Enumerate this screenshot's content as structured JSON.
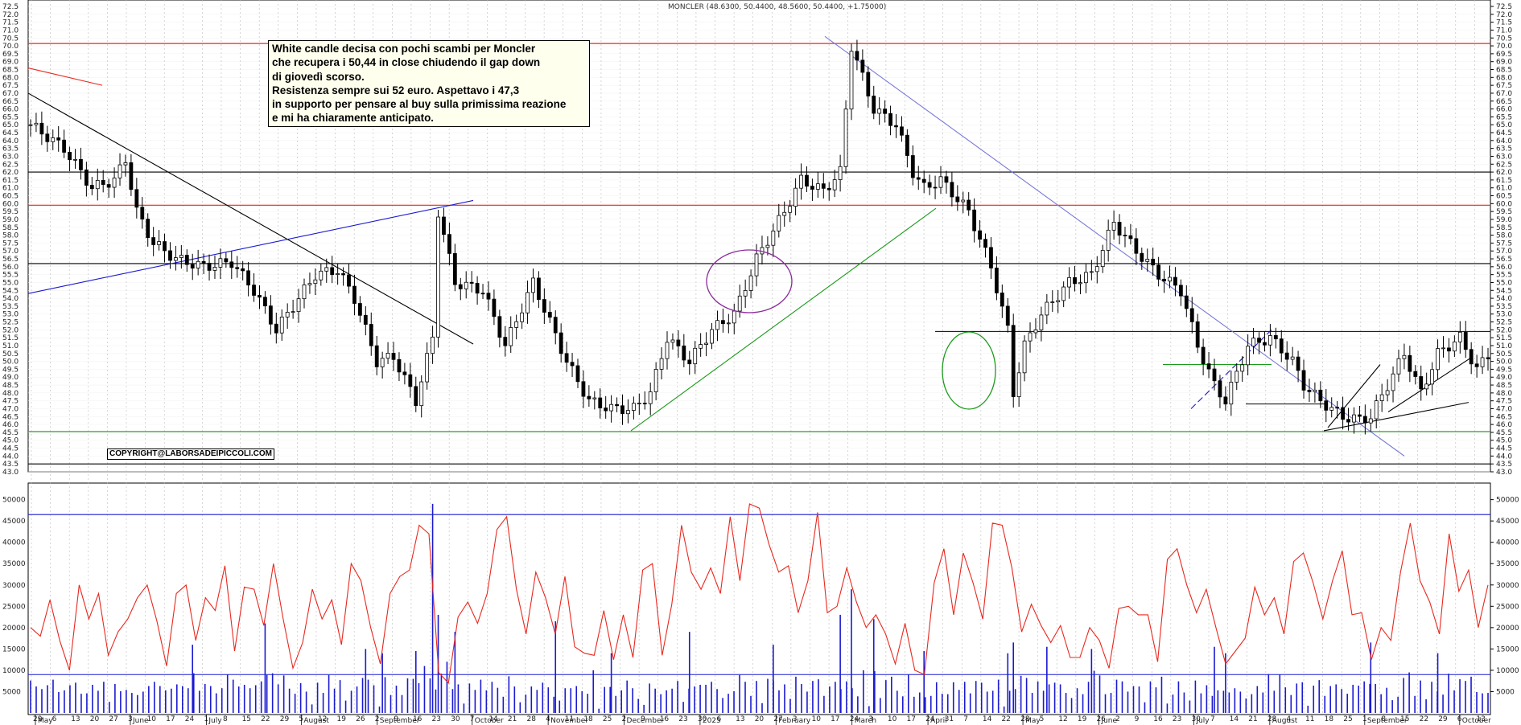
{
  "chart_data": {
    "type": "candlestick",
    "title": "MONCLER (48.6300, 50.4400, 48.5600, 50.4400, +1.75000)",
    "annotation": [
      "White candle decisa con pochi scambi per Moncler",
      "che recupera i 50,44 in close chiudendo il gap down",
      "di giovedì scorso.",
      "Resistenza sempre sui 52 euro. Aspettavo i 47,3",
      "in supporto per pensare al buy sulla primissima reazione",
      "e mi ha chiaramente anticipato."
    ],
    "copyright": "COPYRIGHT@LABORSADEIPICCOLI.COM",
    "price_axis": {
      "ylim": [
        43.0,
        72.5
      ],
      "step": 0.5,
      "grid": true,
      "position": "right"
    },
    "volume_axis": {
      "ylim": [
        0,
        52000
      ],
      "ticks": [
        5000,
        10000,
        15000,
        20000,
        25000,
        30000,
        35000,
        40000,
        45000,
        50000
      ],
      "label_suffix": "0"
    },
    "x_day_labels": [
      "29",
      "6",
      "13",
      "20",
      "27",
      "3",
      "10",
      "17",
      "24",
      "1",
      "8",
      "15",
      "22",
      "29",
      "5",
      "12",
      "19",
      "26",
      "2",
      "9",
      "16",
      "23",
      "30",
      "7",
      "14",
      "21",
      "28",
      "4",
      "11",
      "18",
      "25",
      "2",
      "9",
      "16",
      "23",
      "30",
      "6",
      "13",
      "20",
      "27",
      "3",
      "10",
      "17",
      "24",
      "3",
      "10",
      "17",
      "24",
      "31",
      "7",
      "14",
      "22",
      "28",
      "5",
      "12",
      "19",
      "26",
      "2",
      "9",
      "16",
      "23",
      "30",
      "7",
      "14",
      "21",
      "28",
      "4",
      "11",
      "18",
      "25",
      "1",
      "8",
      "15",
      "22",
      "29",
      "6",
      "13"
    ],
    "x_month_labels": [
      {
        "label": "May",
        "index": 0
      },
      {
        "label": "June",
        "index": 5
      },
      {
        "label": "July",
        "index": 9
      },
      {
        "label": "August",
        "index": 14
      },
      {
        "label": "September",
        "index": 18
      },
      {
        "label": "October",
        "index": 23
      },
      {
        "label": "November",
        "index": 27
      },
      {
        "label": "December",
        "index": 31
      },
      {
        "label": "2025",
        "index": 35
      },
      {
        "label": "February",
        "index": 39
      },
      {
        "label": "March",
        "index": 43
      },
      {
        "label": "April",
        "index": 47
      },
      {
        "label": "May",
        "index": 52
      },
      {
        "label": "June",
        "index": 56
      },
      {
        "label": "July",
        "index": 61
      },
      {
        "label": "August",
        "index": 65
      },
      {
        "label": "September",
        "index": 70
      },
      {
        "label": "October",
        "index": 75
      }
    ],
    "price_path": [
      [
        0,
        65.0
      ],
      [
        6,
        63.5
      ],
      [
        11,
        61.0
      ],
      [
        15,
        61.5
      ],
      [
        17,
        62.8
      ],
      [
        19,
        59.5
      ],
      [
        22,
        57.5
      ],
      [
        26,
        56.5
      ],
      [
        31,
        56.0
      ],
      [
        36,
        56.3
      ],
      [
        40,
        54.5
      ],
      [
        44,
        52.0
      ],
      [
        47,
        53.5
      ],
      [
        51,
        55.5
      ],
      [
        55,
        55.8
      ],
      [
        58,
        54.0
      ],
      [
        62,
        50.0
      ],
      [
        65,
        50.3
      ],
      [
        69,
        47.5
      ],
      [
        72,
        51.5
      ],
      [
        73,
        59.5
      ],
      [
        76,
        55.0
      ],
      [
        81,
        54.5
      ],
      [
        85,
        51.0
      ],
      [
        90,
        55.0
      ],
      [
        96,
        50.0
      ],
      [
        100,
        47.5
      ],
      [
        104,
        47.0
      ],
      [
        108,
        47.0
      ],
      [
        111,
        48.0
      ],
      [
        114,
        51.5
      ],
      [
        118,
        50.0
      ],
      [
        122,
        52.0
      ],
      [
        126,
        53.0
      ],
      [
        130,
        56.5
      ],
      [
        135,
        59.5
      ],
      [
        138,
        61.5
      ],
      [
        142,
        60.8
      ],
      [
        145,
        62.0
      ],
      [
        147,
        70.0
      ],
      [
        151,
        66.0
      ],
      [
        155,
        65.0
      ],
      [
        158,
        62.0
      ],
      [
        160,
        61.0
      ],
      [
        163,
        61.5
      ],
      [
        168,
        59.5
      ],
      [
        172,
        56.0
      ],
      [
        175,
        52.0
      ],
      [
        176,
        48.0
      ],
      [
        178,
        51.0
      ],
      [
        181,
        53.0
      ],
      [
        186,
        55.0
      ],
      [
        190,
        55.5
      ],
      [
        194,
        58.8
      ],
      [
        198,
        57.0
      ],
      [
        202,
        55.5
      ],
      [
        206,
        54.5
      ],
      [
        209,
        51.0
      ],
      [
        212,
        48.5
      ],
      [
        214,
        47.5
      ],
      [
        218,
        51.0
      ],
      [
        222,
        51.5
      ],
      [
        226,
        50.0
      ],
      [
        228,
        48.5
      ],
      [
        231,
        47.5
      ],
      [
        235,
        46.5
      ],
      [
        238,
        46.3
      ],
      [
        240,
        46.5
      ],
      [
        243,
        48.5
      ],
      [
        246,
        50.5
      ],
      [
        249,
        48.0
      ],
      [
        252,
        50.5
      ],
      [
        256,
        51.5
      ],
      [
        259,
        49.5
      ],
      [
        261,
        50.4
      ]
    ],
    "volume_bars": [
      7600,
      6200,
      5600,
      6500,
      7800,
      4900,
      5300,
      6500,
      7100,
      4500,
      4600,
      6600,
      5200,
      7300,
      2600,
      6800,
      5100,
      5400,
      4700,
      4200,
      5000,
      6300,
      7300,
      6300,
      5300,
      5700,
      6700,
      6300,
      5800,
      9300,
      5200,
      6800,
      6300,
      4600,
      5800,
      9000,
      7800,
      6200,
      6600,
      5800,
      6500,
      7400,
      8900,
      9300,
      6700,
      8800,
      5700,
      4500,
      7000,
      5000,
      2000,
      7100,
      4700,
      8900,
      5700,
      7700,
      2900,
      5200,
      6200,
      8200,
      7800,
      6500,
      1500,
      8400,
      4200,
      6400,
      4200,
      8100,
      8000,
      7000,
      11000,
      8100,
      5500,
      9200,
      12000,
      5600,
      6700,
      2200,
      6900,
      5400,
      7800,
      5300,
      7300,
      5900,
      3800,
      8600,
      6200,
      2500,
      4300,
      6200,
      5400,
      7100,
      6000,
      3800,
      2900,
      5800,
      5800,
      6300,
      5100,
      4500,
      10000,
      1000,
      6100,
      6100,
      4000,
      5300,
      7600,
      5800,
      3300,
      1900,
      6900,
      5700,
      4400,
      5300,
      5700,
      7500,
      2600,
      5700,
      6200,
      6600,
      6600,
      7300,
      5600,
      3500,
      4500,
      5100,
      8900,
      7300,
      4000,
      7500,
      2300,
      8000,
      7600,
      5300,
      6700,
      3300,
      8500,
      6800,
      5000,
      7500,
      7900,
      4000,
      6200,
      7300,
      5600,
      7400,
      5800,
      3900,
      10000,
      1600,
      9800,
      3500,
      7700,
      8500,
      5200,
      3900,
      9000,
      3800,
      4800,
      3700,
      4000,
      7200,
      4500,
      4400,
      7200,
      5400,
      7300,
      4600,
      7500,
      7100,
      5000,
      5200,
      7800,
      1500,
      5200,
      5600,
      8700,
      8200,
      4700,
      7400,
      5200,
      6700,
      7100,
      6700,
      4700,
      3500,
      5800,
      4400,
      7300,
      9900,
      8800,
      4400,
      4700,
      7800,
      7400,
      5000,
      6300,
      6200,
      2500,
      7400,
      6000,
      8500,
      2200,
      4300,
      7400,
      4800,
      2900,
      7600,
      4600,
      6500,
      4000,
      5300,
      5200,
      4800,
      5800,
      5000,
      3400,
      4400,
      6300,
      4800,
      9100,
      5200,
      9000,
      6000,
      4200,
      6900,
      7200,
      1700,
      6400,
      7700,
      4000,
      6300,
      6700,
      5600,
      4500,
      6600,
      6400,
      7400,
      6800,
      6800,
      4400,
      5900,
      3000,
      3800,
      8200,
      9500,
      4000,
      7600,
      3200,
      7300,
      5000,
      4300,
      9200,
      5300,
      7900,
      7500,
      8500,
      4900,
      4600,
      4700
    ],
    "volume_spikes": [
      {
        "index": 29,
        "value": 16000
      },
      {
        "index": 42,
        "value": 21000
      },
      {
        "index": 60,
        "value": 15000
      },
      {
        "index": 63,
        "value": 14000
      },
      {
        "index": 69,
        "value": 14500
      },
      {
        "index": 72,
        "value": 49000
      },
      {
        "index": 73,
        "value": 23000
      },
      {
        "index": 76,
        "value": 19000
      },
      {
        "index": 94,
        "value": 21500
      },
      {
        "index": 104,
        "value": 14000
      },
      {
        "index": 118,
        "value": 19000
      },
      {
        "index": 133,
        "value": 16000
      },
      {
        "index": 145,
        "value": 23000
      },
      {
        "index": 147,
        "value": 29000
      },
      {
        "index": 151,
        "value": 22000
      },
      {
        "index": 160,
        "value": 14500
      },
      {
        "index": 175,
        "value": 14000
      },
      {
        "index": 176,
        "value": 16500
      },
      {
        "index": 182,
        "value": 15500
      },
      {
        "index": 190,
        "value": 15000
      },
      {
        "index": 212,
        "value": 15500
      },
      {
        "index": 214,
        "value": 14000
      },
      {
        "index": 240,
        "value": 16500
      },
      {
        "index": 252,
        "value": 14000
      }
    ],
    "volume_ma": [
      20000,
      18000,
      26500,
      17000,
      10000,
      30000,
      22000,
      28000,
      13500,
      19000,
      22000,
      27000,
      30000,
      21500,
      11000,
      28000,
      30000,
      17000,
      27000,
      24000,
      34500,
      14500,
      29500,
      29000,
      20500,
      35000,
      22000,
      10500,
      16500,
      29000,
      22000,
      26500,
      16000,
      35000,
      31000,
      20000,
      11500,
      28000,
      32000,
      33500,
      44000,
      42000,
      9500,
      7000,
      22500,
      26000,
      21000,
      28000,
      43000,
      46000,
      29000,
      18500,
      33000,
      27000,
      18500,
      32000,
      15500,
      14000,
      13500,
      24000,
      12500,
      23000,
      13000,
      33500,
      35000,
      13500,
      25500,
      44000,
      33000,
      29000,
      34000,
      28000,
      46000,
      31000,
      49000,
      48000,
      39500,
      33000,
      34500,
      23500,
      31000,
      47000,
      23500,
      25000,
      34000,
      26000,
      20000,
      23000,
      18500,
      11500,
      21000,
      10000,
      9000,
      30500,
      38500,
      23000,
      37500,
      30500,
      22000,
      44500,
      44000,
      34000,
      19000,
      25500,
      20500,
      16500,
      20500,
      13000,
      13000,
      20000,
      17000,
      10500,
      24500,
      25000,
      23000,
      23000,
      12000,
      36000,
      38500,
      30000,
      23500,
      29000,
      20000,
      11500,
      14500,
      17500,
      29500,
      23000,
      27000,
      18500,
      35500,
      37500,
      30500,
      22000,
      31000,
      38000,
      23000,
      23500,
      12500,
      20000,
      17000,
      33000,
      44500,
      31000,
      26000,
      18500,
      42000,
      28500,
      33500,
      20000,
      30000
    ],
    "overlays": {
      "resistance_70": 70.15,
      "black_level_62": 62.0,
      "red_level_60": 59.9,
      "black_level_56": 56.2,
      "black_level_52": 51.9,
      "green_level_49_8": 49.8,
      "black_level_47_3": 47.3,
      "green_support_45_5": 45.55,
      "black_level_43_5": 43.5,
      "volume_hline": 46500,
      "volume_lower_hline": 9000
    }
  }
}
